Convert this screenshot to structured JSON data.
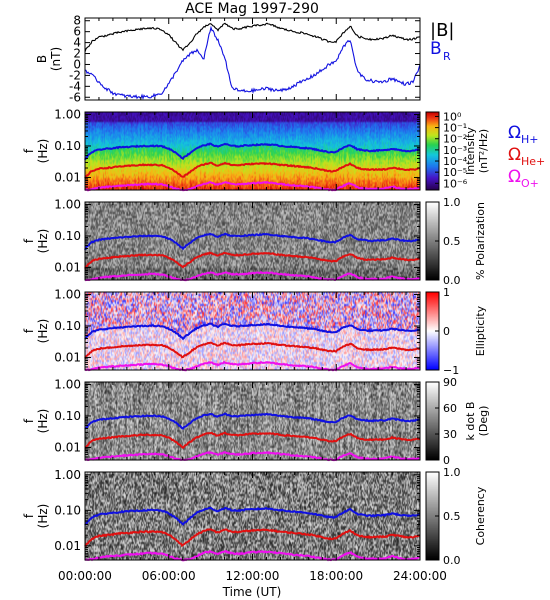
{
  "figure": {
    "title": "ACE Mag 1997-290"
  },
  "time_axis": {
    "label": "Time (UT)",
    "ticks": [
      {
        "hour": 0,
        "label": "00:00:00"
      },
      {
        "hour": 6,
        "label": "06:00:00"
      },
      {
        "hour": 12,
        "label": "12:00:00"
      },
      {
        "hour": 18,
        "label": "18:00:00"
      },
      {
        "hour": 24,
        "label": "24:00:00"
      }
    ],
    "range_hours": [
      0,
      24
    ]
  },
  "freq_axis": {
    "ylabel_top": "f",
    "ylabel_bottom": "(Hz)",
    "ticks": [
      {
        "value": 1.0,
        "label": "1.00"
      },
      {
        "value": 0.1,
        "label": "0.10"
      },
      {
        "value": 0.01,
        "label": "0.01"
      }
    ],
    "range_hz": [
      0.004,
      1.2
    ],
    "scale": "log"
  },
  "gyro_legend": [
    {
      "symbol": "Ω",
      "sub": "H+",
      "color": "#1010e0"
    },
    {
      "symbol": "Ω",
      "sub": "He+",
      "color": "#e01010"
    },
    {
      "symbol": "Ω",
      "sub": "O+",
      "color": "#ee10ee"
    }
  ],
  "colors": {
    "b_total": "#000000",
    "b_r": "#1010e0",
    "gyro_h": "#1010e0",
    "gyro_he": "#e01010",
    "gyro_o": "#ee10ee"
  },
  "chart_data": [
    {
      "type": "line",
      "id": "magnetic-field",
      "ylabel_top": "B",
      "ylabel_bottom": "(nT)",
      "ylim": [
        -6.5,
        8.5
      ],
      "yticks": [
        {
          "value": 8,
          "label": "8"
        },
        {
          "value": 6,
          "label": "6"
        },
        {
          "value": 4,
          "label": "4"
        },
        {
          "value": 2,
          "label": "2"
        },
        {
          "value": 0,
          "label": "0"
        },
        {
          "value": -2,
          "label": "-2"
        },
        {
          "value": -4,
          "label": "-4"
        },
        {
          "value": -6,
          "label": "-6"
        }
      ],
      "x": [
        0,
        0.5,
        1,
        1.5,
        2,
        2.5,
        3,
        3.5,
        4,
        4.5,
        5,
        5.5,
        6,
        6.5,
        7,
        7.5,
        8,
        8.5,
        9,
        9.5,
        10,
        10.5,
        11,
        11.5,
        12,
        12.5,
        13,
        13.5,
        14,
        14.5,
        15,
        15.5,
        16,
        16.5,
        17,
        17.5,
        18,
        18.5,
        19,
        19.5,
        20,
        20.5,
        21,
        21.5,
        22,
        22.5,
        23,
        23.5,
        24
      ],
      "series": [
        {
          "name": "|B|",
          "color": "#000000",
          "values": [
            2.5,
            4.2,
            5.0,
            5.3,
            5.6,
            5.9,
            6.1,
            6.3,
            6.5,
            6.6,
            6.6,
            6.4,
            5.4,
            4.0,
            2.6,
            3.8,
            5.6,
            6.8,
            7.6,
            6.2,
            7.6,
            6.6,
            6.4,
            6.8,
            7.0,
            7.2,
            7.4,
            7.1,
            6.6,
            6.3,
            6.0,
            5.8,
            5.5,
            5.1,
            4.6,
            4.2,
            4.2,
            5.8,
            7.0,
            5.2,
            4.8,
            4.6,
            4.7,
            4.8,
            5.4,
            4.9,
            4.6,
            4.6,
            5.1
          ]
        },
        {
          "name": "B_R",
          "color": "#1010e0",
          "values": [
            -1.0,
            -2.0,
            -3.2,
            -4.4,
            -5.2,
            -5.6,
            -5.8,
            -5.9,
            -5.9,
            -5.9,
            -5.7,
            -5.2,
            -3.6,
            -1.4,
            0.6,
            1.8,
            2.6,
            1.0,
            6.6,
            4.6,
            1.4,
            -4.2,
            -4.8,
            -4.9,
            -4.8,
            -4.6,
            -4.4,
            -4.6,
            -4.8,
            -4.5,
            -3.8,
            -3.2,
            -2.6,
            -1.8,
            -1.0,
            0.0,
            0.6,
            3.2,
            4.6,
            -1.2,
            -2.6,
            -3.0,
            -3.2,
            -3.1,
            -2.5,
            -3.2,
            -3.6,
            -3.2,
            -0.2
          ]
        }
      ]
    },
    {
      "type": "heatmap",
      "id": "power-spectral-density",
      "colorbar": {
        "title_top": "Intensity",
        "title_bottom": "(nT²/Hz)",
        "scale": "log",
        "ticks": [
          {
            "value": 0,
            "label": "10⁰"
          },
          {
            "value": -1,
            "label": "10⁻¹"
          },
          {
            "value": -2,
            "label": "10⁻²"
          },
          {
            "value": -3,
            "label": "10⁻³"
          },
          {
            "value": -4,
            "label": "10⁻⁴"
          },
          {
            "value": -5,
            "label": "10⁻⁵"
          },
          {
            "value": -6,
            "label": "10⁻⁶"
          }
        ],
        "range": [
          -6.6,
          0.4
        ],
        "palette": "rainbow"
      }
    },
    {
      "type": "heatmap",
      "id": "polarization",
      "colorbar": {
        "title_top": "% Polarization",
        "title_bottom": "",
        "ticks": [
          {
            "value": 1.0,
            "label": "1.0"
          },
          {
            "value": 0.5,
            "label": "0.5"
          },
          {
            "value": 0.0,
            "label": "0.0"
          }
        ],
        "range": [
          0,
          1
        ],
        "palette": "grayscale"
      }
    },
    {
      "type": "heatmap",
      "id": "ellipticity",
      "colorbar": {
        "title_top": "Ellipticity",
        "title_bottom": "",
        "ticks": [
          {
            "value": 1,
            "label": "1"
          },
          {
            "value": 0,
            "label": "0"
          },
          {
            "value": -1,
            "label": "−1"
          }
        ],
        "range": [
          -1,
          1
        ],
        "palette": "blue-white-red"
      }
    },
    {
      "type": "heatmap",
      "id": "k-dot-b",
      "colorbar": {
        "title_top": "k dot B",
        "title_bottom": "(Deg)",
        "ticks": [
          {
            "value": 90,
            "label": "90"
          },
          {
            "value": 60,
            "label": "60"
          },
          {
            "value": 30,
            "label": "30"
          },
          {
            "value": 0,
            "label": "0"
          }
        ],
        "range": [
          0,
          90
        ],
        "palette": "grayscale"
      }
    },
    {
      "type": "heatmap",
      "id": "coherency",
      "colorbar": {
        "title_top": "Coherency",
        "title_bottom": "",
        "ticks": [
          {
            "value": 1.0,
            "label": "1.0"
          },
          {
            "value": 0.5,
            "label": "0.5"
          },
          {
            "value": 0.0,
            "label": "0.0"
          }
        ],
        "range": [
          0,
          1
        ],
        "palette": "grayscale"
      }
    },
    {
      "type": "line",
      "id": "gyrofrequencies",
      "note_units": "Hz",
      "x": [
        0,
        0.5,
        1,
        1.5,
        2,
        2.5,
        3,
        3.5,
        4,
        4.5,
        5,
        5.5,
        6,
        6.5,
        7,
        7.5,
        8,
        8.5,
        9,
        9.5,
        10,
        10.5,
        11,
        11.5,
        12,
        12.5,
        13,
        13.5,
        14,
        14.5,
        15,
        15.5,
        16,
        16.5,
        17,
        17.5,
        18,
        18.5,
        19,
        19.5,
        20,
        20.5,
        21,
        21.5,
        22,
        22.5,
        23,
        23.5,
        24
      ],
      "series": [
        {
          "name": "Ω_H+",
          "color": "#1010e0",
          "values": [
            0.038,
            0.064,
            0.076,
            0.081,
            0.085,
            0.09,
            0.093,
            0.096,
            0.099,
            0.101,
            0.101,
            0.098,
            0.082,
            0.061,
            0.04,
            0.058,
            0.085,
            0.104,
            0.116,
            0.094,
            0.116,
            0.101,
            0.098,
            0.104,
            0.107,
            0.11,
            0.113,
            0.108,
            0.101,
            0.096,
            0.092,
            0.088,
            0.084,
            0.078,
            0.07,
            0.064,
            0.064,
            0.088,
            0.107,
            0.079,
            0.073,
            0.07,
            0.072,
            0.073,
            0.082,
            0.075,
            0.07,
            0.07,
            0.078
          ]
        },
        {
          "name": "Ω_He+",
          "color": "#e01010",
          "values": [
            0.0095,
            0.016,
            0.019,
            0.02,
            0.021,
            0.0225,
            0.023,
            0.024,
            0.025,
            0.025,
            0.025,
            0.0245,
            0.0205,
            0.015,
            0.01,
            0.0145,
            0.021,
            0.026,
            0.029,
            0.0235,
            0.029,
            0.025,
            0.0245,
            0.026,
            0.027,
            0.0275,
            0.028,
            0.027,
            0.025,
            0.024,
            0.023,
            0.022,
            0.021,
            0.0195,
            0.0175,
            0.016,
            0.016,
            0.022,
            0.027,
            0.02,
            0.018,
            0.0175,
            0.018,
            0.018,
            0.0205,
            0.019,
            0.0175,
            0.0175,
            0.0195
          ]
        },
        {
          "name": "Ω_O+",
          "color": "#ee10ee",
          "values": [
            0.004,
            0.0042,
            0.0047,
            0.005,
            0.0052,
            0.0054,
            0.0056,
            0.0058,
            0.006,
            0.0062,
            0.0062,
            0.006,
            0.0052,
            0.0044,
            0.004,
            0.0042,
            0.0052,
            0.0063,
            0.007,
            0.0058,
            0.007,
            0.0062,
            0.006,
            0.0063,
            0.0066,
            0.0068,
            0.0069,
            0.0066,
            0.0062,
            0.0059,
            0.0056,
            0.0054,
            0.0052,
            0.0048,
            0.0044,
            0.0041,
            0.0041,
            0.0054,
            0.0066,
            0.0049,
            0.0045,
            0.0043,
            0.0044,
            0.0045,
            0.0051,
            0.0046,
            0.0043,
            0.0043,
            0.0048
          ]
        }
      ]
    }
  ]
}
